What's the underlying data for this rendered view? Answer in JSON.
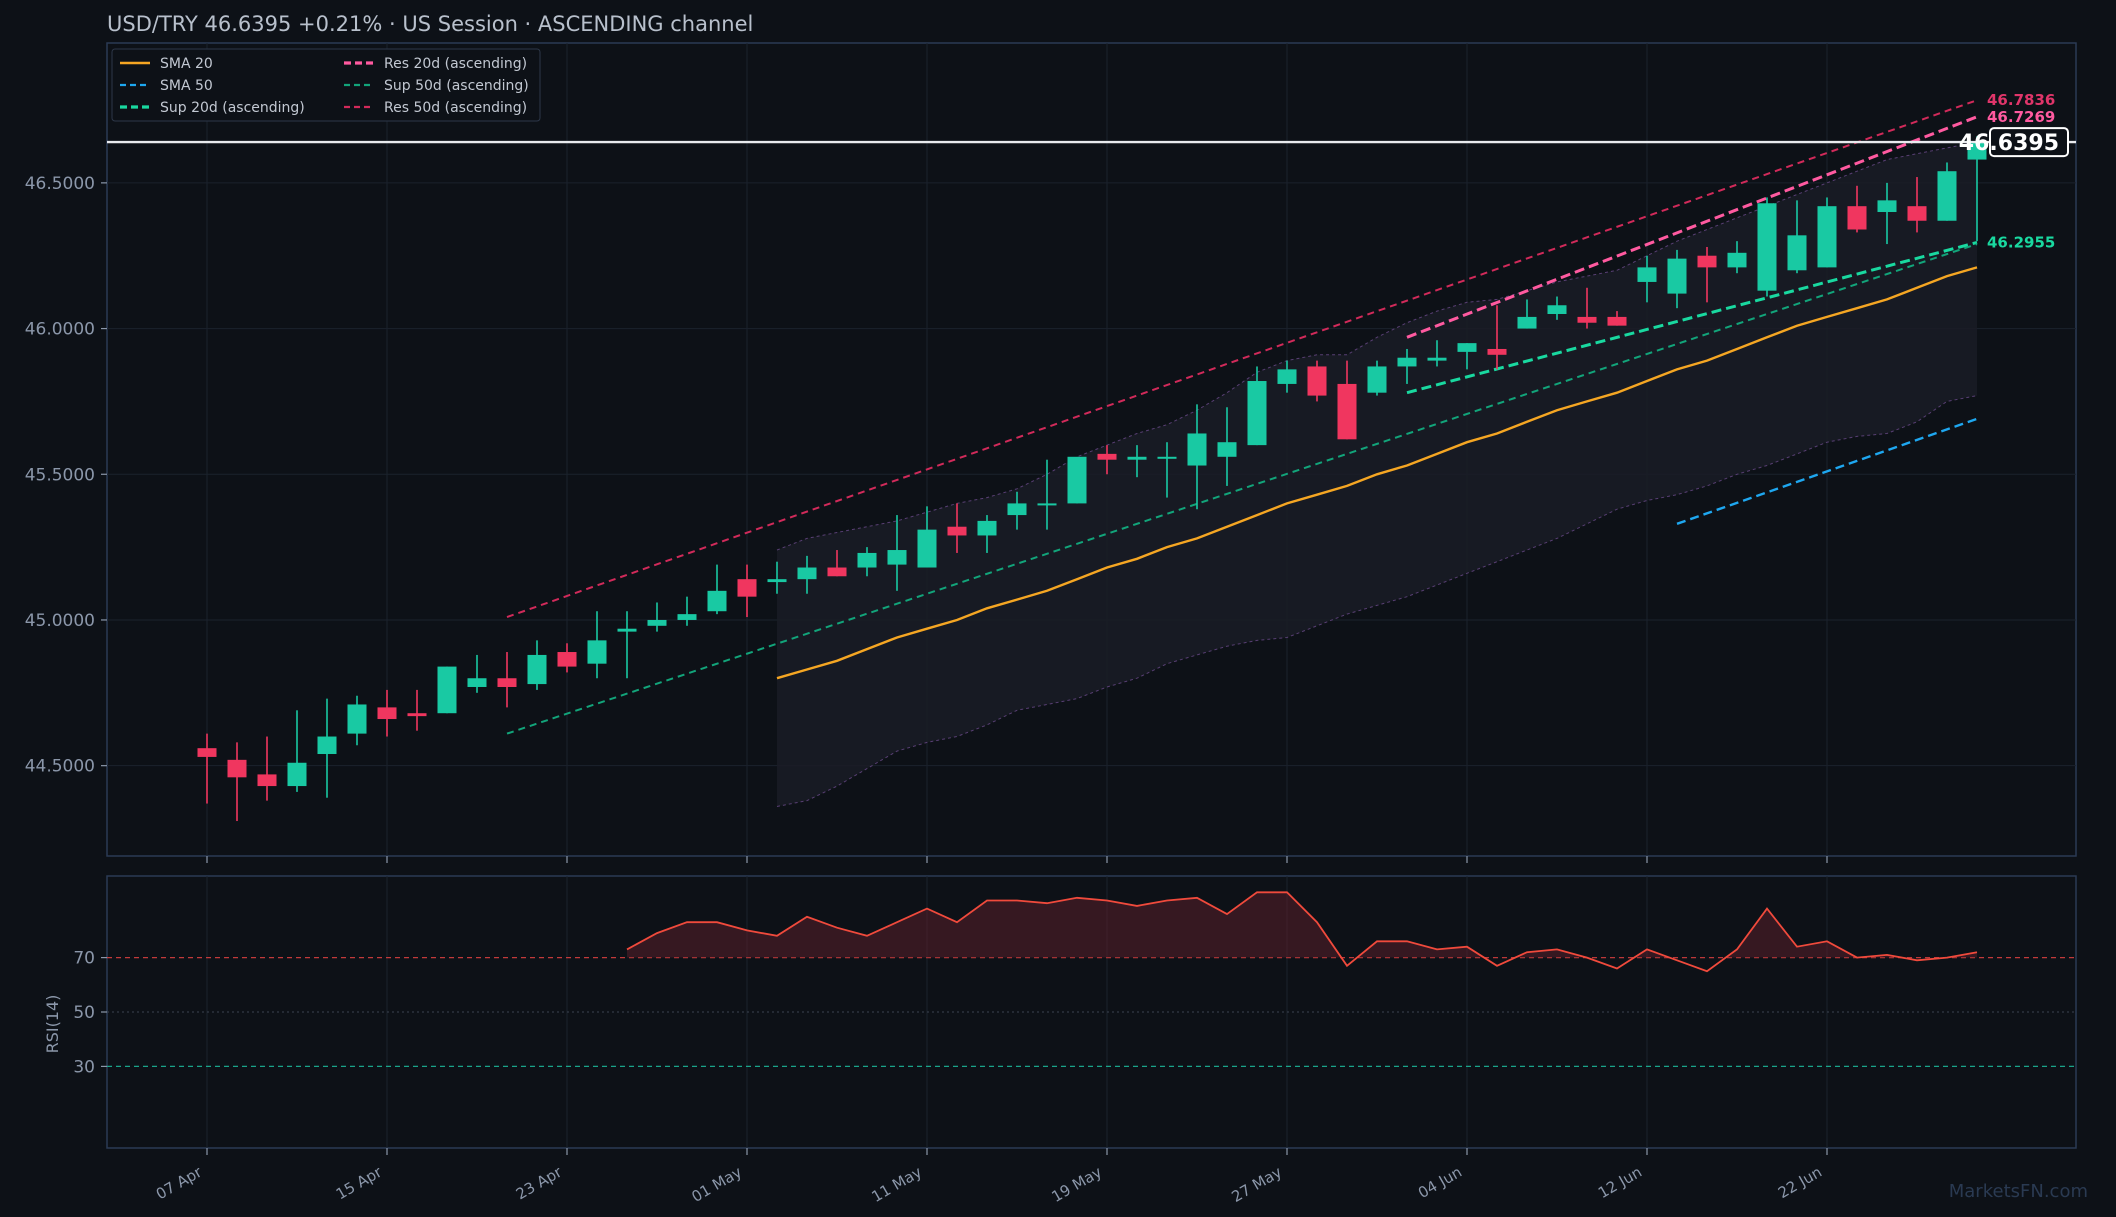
{
  "title": {
    "symbol": "USD/TRY",
    "price": "46.6395",
    "change": "+0.21%",
    "session": "US Session",
    "pattern": "ASCENDING channel",
    "separator": "·"
  },
  "watermark": "MarketsFN.com",
  "last_price_tag": "46.6395",
  "colors": {
    "background": "#0d1117",
    "panel_border": "#2b3a55",
    "grid": "#1b222d",
    "up": "#19c9a3",
    "down": "#f0365f",
    "sma20": "#f5a623",
    "sma50": "#1ea7f0",
    "sup20": "#19d9a0",
    "res20": "#ff5aa0",
    "sup50": "#12a47a",
    "res50": "#d12a5a",
    "band": "#6a4a8a",
    "rsi_line": "#f04a3c",
    "rsi_ob": "#c23a3a",
    "rsi_os": "#1aa48a",
    "last_price_line": "#e8eaee"
  },
  "legend": [
    {
      "label": "SMA 20",
      "color": "#f5a623",
      "style": "solid"
    },
    {
      "label": "Res 20d (ascending)",
      "color": "#ff5aa0",
      "style": "dashed-bold"
    },
    {
      "label": "SMA 50",
      "color": "#1ea7f0",
      "style": "dashed"
    },
    {
      "label": "Sup 50d (ascending)",
      "color": "#12a47a",
      "style": "dashed"
    },
    {
      "label": "Sup 20d (ascending)",
      "color": "#19d9a0",
      "style": "dashed-bold"
    },
    {
      "label": "Res 50d (ascending)",
      "color": "#d12a5a",
      "style": "dashed"
    }
  ],
  "level_labels": [
    {
      "value": "46.7836",
      "color": "#e0356a"
    },
    {
      "value": "46.7269",
      "color": "#ff5aa0"
    },
    {
      "value": "46.2955",
      "color": "#19d9a0"
    }
  ],
  "chart_data": {
    "type": "candlestick",
    "title": "USD/TRY   46.6395   +0.21%  ·  US Session  ·  ASCENDING channel",
    "price_ylim": [
      44.19,
      46.98
    ],
    "price_ticks": [
      44.5,
      45.0,
      45.5,
      46.0,
      46.5
    ],
    "price_tick_labels": [
      "44.5000",
      "45.0000",
      "45.5000",
      "46.0000",
      "46.5000"
    ],
    "x_ticks": [
      {
        "index": 0,
        "label": "07 Apr"
      },
      {
        "index": 6,
        "label": "15 Apr"
      },
      {
        "index": 12,
        "label": "23 Apr"
      },
      {
        "index": 18,
        "label": "01 May"
      },
      {
        "index": 24,
        "label": "11 May"
      },
      {
        "index": 30,
        "label": "19 May"
      },
      {
        "index": 36,
        "label": "27 May"
      },
      {
        "index": 42,
        "label": "04 Jun"
      },
      {
        "index": 48,
        "label": "12 Jun"
      },
      {
        "index": 54,
        "label": "22 Jun"
      }
    ],
    "ohlc": [
      [
        44.56,
        44.61,
        44.37,
        44.53
      ],
      [
        44.52,
        44.58,
        44.31,
        44.46
      ],
      [
        44.47,
        44.6,
        44.38,
        44.43
      ],
      [
        44.43,
        44.69,
        44.41,
        44.51
      ],
      [
        44.54,
        44.73,
        44.39,
        44.6
      ],
      [
        44.61,
        44.74,
        44.57,
        44.71
      ],
      [
        44.7,
        44.76,
        44.6,
        44.66
      ],
      [
        44.68,
        44.76,
        44.62,
        44.67
      ],
      [
        44.68,
        44.84,
        44.68,
        44.84
      ],
      [
        44.77,
        44.88,
        44.75,
        44.8
      ],
      [
        44.8,
        44.89,
        44.7,
        44.77
      ],
      [
        44.78,
        44.93,
        44.76,
        44.88
      ],
      [
        44.89,
        44.92,
        44.82,
        44.84
      ],
      [
        44.85,
        45.03,
        44.8,
        44.93
      ],
      [
        44.96,
        45.03,
        44.8,
        44.97
      ],
      [
        44.98,
        45.06,
        44.96,
        45.0
      ],
      [
        45.0,
        45.08,
        44.98,
        45.02
      ],
      [
        45.03,
        45.19,
        45.02,
        45.1
      ],
      [
        45.14,
        45.19,
        45.01,
        45.08
      ],
      [
        45.13,
        45.2,
        45.09,
        45.14
      ],
      [
        45.14,
        45.22,
        45.09,
        45.18
      ],
      [
        45.18,
        45.24,
        45.15,
        45.15
      ],
      [
        45.18,
        45.25,
        45.15,
        45.23
      ],
      [
        45.19,
        45.36,
        45.1,
        45.24
      ],
      [
        45.18,
        45.39,
        45.18,
        45.31
      ],
      [
        45.32,
        45.4,
        45.23,
        45.29
      ],
      [
        45.29,
        45.36,
        45.23,
        45.34
      ],
      [
        45.36,
        45.44,
        45.31,
        45.4
      ],
      [
        45.4,
        45.55,
        45.31,
        45.4
      ],
      [
        45.4,
        45.55,
        45.4,
        45.56
      ],
      [
        45.57,
        45.6,
        45.5,
        45.55
      ],
      [
        45.55,
        45.6,
        45.49,
        45.56
      ],
      [
        45.56,
        45.61,
        45.42,
        45.56
      ],
      [
        45.53,
        45.74,
        45.38,
        45.64
      ],
      [
        45.56,
        45.73,
        45.46,
        45.61
      ],
      [
        45.6,
        45.87,
        45.6,
        45.82
      ],
      [
        45.81,
        45.89,
        45.78,
        45.86
      ],
      [
        45.87,
        45.89,
        45.75,
        45.77
      ],
      [
        45.81,
        45.89,
        45.62,
        45.62
      ],
      [
        45.78,
        45.89,
        45.77,
        45.87
      ],
      [
        45.87,
        45.93,
        45.81,
        45.9
      ],
      [
        45.89,
        45.96,
        45.87,
        45.9
      ],
      [
        45.92,
        45.95,
        45.86,
        45.95
      ],
      [
        45.93,
        46.08,
        45.86,
        45.91
      ],
      [
        46.0,
        46.1,
        46.0,
        46.04
      ],
      [
        46.05,
        46.11,
        46.03,
        46.08
      ],
      [
        46.04,
        46.14,
        46.0,
        46.02
      ],
      [
        46.04,
        46.06,
        46.01,
        46.01
      ],
      [
        46.16,
        46.25,
        46.09,
        46.21
      ],
      [
        46.12,
        46.27,
        46.07,
        46.24
      ],
      [
        46.25,
        46.28,
        46.09,
        46.21
      ],
      [
        46.21,
        46.3,
        46.19,
        46.26
      ],
      [
        46.13,
        46.45,
        46.11,
        46.43
      ],
      [
        46.2,
        46.44,
        46.19,
        46.32
      ],
      [
        46.21,
        46.45,
        46.21,
        46.42
      ],
      [
        46.42,
        46.49,
        46.33,
        46.34
      ],
      [
        46.4,
        46.5,
        46.29,
        46.44
      ],
      [
        46.42,
        46.52,
        46.33,
        46.37
      ],
      [
        46.37,
        46.57,
        46.37,
        46.54
      ],
      [
        46.58,
        46.66,
        46.3,
        46.64
      ]
    ],
    "sma20": {
      "start_index": 19,
      "values": [
        44.8,
        44.83,
        44.86,
        44.9,
        44.94,
        44.97,
        45.0,
        45.04,
        45.07,
        45.1,
        45.14,
        45.18,
        45.21,
        45.25,
        45.28,
        45.32,
        45.36,
        45.4,
        45.43,
        45.46,
        45.5,
        45.53,
        45.57,
        45.61,
        45.64,
        45.68,
        45.72,
        45.75,
        45.78,
        45.82,
        45.86,
        45.89,
        45.93,
        45.97,
        46.01,
        46.04,
        46.07,
        46.1,
        46.14,
        46.18,
        46.21
      ]
    },
    "bollinger": {
      "start_index": 19,
      "upper": [
        45.24,
        45.28,
        45.3,
        45.32,
        45.34,
        45.37,
        45.4,
        45.42,
        45.45,
        45.5,
        45.56,
        45.6,
        45.64,
        45.67,
        45.72,
        45.78,
        45.85,
        45.89,
        45.91,
        45.91,
        45.97,
        46.02,
        46.06,
        46.09,
        46.1,
        46.13,
        46.16,
        46.18,
        46.2,
        46.25,
        46.3,
        46.34,
        46.38,
        46.42,
        46.46,
        46.5,
        46.54,
        46.58,
        46.6,
        46.62,
        46.64
      ],
      "lower": [
        44.36,
        44.38,
        44.43,
        44.49,
        44.55,
        44.58,
        44.6,
        44.64,
        44.69,
        44.71,
        44.73,
        44.77,
        44.8,
        44.85,
        44.88,
        44.91,
        44.93,
        44.94,
        44.98,
        45.02,
        45.05,
        45.08,
        45.12,
        45.16,
        45.2,
        45.24,
        45.28,
        45.33,
        45.38,
        45.41,
        45.43,
        45.46,
        45.5,
        45.53,
        45.57,
        45.61,
        45.63,
        45.64,
        45.68,
        45.75,
        45.77
      ]
    },
    "trend_lines": [
      {
        "name": "SMA 50",
        "from": [
          49,
          45.33
        ],
        "to": [
          59,
          45.69
        ]
      },
      {
        "name": "Sup 20d (ascending)",
        "from": [
          40,
          45.78
        ],
        "to": [
          59,
          46.2955
        ]
      },
      {
        "name": "Res 20d (ascending)",
        "from": [
          40,
          45.97
        ],
        "to": [
          59,
          46.7269
        ]
      },
      {
        "name": "Sup 50d (ascending)",
        "from": [
          10,
          44.61
        ],
        "to": [
          59,
          46.29
        ]
      },
      {
        "name": "Res 50d (ascending)",
        "from": [
          10,
          45.01
        ],
        "to": [
          59,
          46.7836
        ]
      }
    ],
    "rsi": {
      "label": "RSI(14)",
      "ylim": [
        0,
        100
      ],
      "levels": [
        70,
        50,
        30
      ],
      "level_labels": [
        "70",
        "50",
        "30"
      ],
      "start_index": 14,
      "values": [
        73,
        79,
        83,
        83,
        80,
        78,
        85,
        81,
        78,
        83,
        88,
        83,
        91,
        91,
        90,
        92,
        91,
        89,
        91,
        92,
        86,
        94,
        94,
        83,
        67,
        76,
        76,
        73,
        74,
        67,
        72,
        73,
        70,
        66,
        73,
        69,
        65,
        73,
        88,
        74,
        76,
        70,
        71,
        69,
        70,
        72
      ]
    }
  }
}
